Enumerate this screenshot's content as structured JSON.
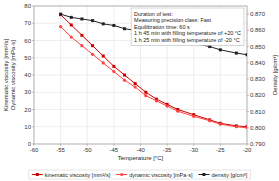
{
  "chart_data": {
    "type": "line",
    "xlabel": "Temperature [°C]",
    "ylabel": "Kinematic viscosity [mm²/s]\nDynamic viscosity [mPa·s]",
    "y2label": "Density [g/cm³]",
    "x": [
      -55,
      -53,
      -51,
      -49,
      -47,
      -45,
      -43,
      -41,
      -39,
      -37,
      -35,
      -33,
      -30,
      -27,
      -25,
      -22,
      -20
    ],
    "series": [
      {
        "name": "kinematic viscosity [mm²/s]",
        "color": "#cc0000",
        "marker": "square",
        "values": [
          75,
          69,
          63,
          57,
          51,
          45,
          40,
          35,
          30,
          26,
          23,
          20,
          17,
          14,
          12,
          10.5,
          10
        ]
      },
      {
        "name": "dynamic viscosity [mPa·s]",
        "color": "#ff4444",
        "marker": "circle",
        "values": [
          68,
          62,
          57,
          52,
          47,
          42,
          37,
          33,
          28,
          25,
          22,
          19,
          16,
          13.5,
          11.5,
          10,
          9.5
        ]
      },
      {
        "name": "density [g/cm³]",
        "color": "#222222",
        "marker": "square",
        "axis": "y2",
        "values": [
          0.87,
          0.868,
          0.867,
          0.866,
          0.864,
          0.863,
          0.861,
          0.86,
          0.858,
          0.857,
          0.855,
          0.854,
          0.852,
          0.85,
          0.848,
          0.846,
          0.845
        ]
      }
    ],
    "xlim": [
      -60,
      -20
    ],
    "xticks": [
      -60,
      -55,
      -50,
      -45,
      -40,
      -35,
      -30,
      -25,
      -20
    ],
    "ylim": [
      0,
      80
    ],
    "yticks": [
      0,
      10,
      20,
      30,
      40,
      50,
      60,
      70,
      80
    ],
    "y2lim": [
      0.79,
      0.875
    ],
    "y2ticks": [
      {
        "value": 0.79,
        "label": "0.790"
      },
      {
        "value": 0.8,
        "label": "0.800"
      },
      {
        "value": 0.81,
        "label": "0.810"
      },
      {
        "value": 0.82,
        "label": "0.820"
      },
      {
        "value": 0.83,
        "label": "0.830"
      },
      {
        "value": 0.84,
        "label": "0.840"
      },
      {
        "value": 0.85,
        "label": "0.850"
      },
      {
        "value": 0.86,
        "label": "0.860"
      },
      {
        "value": 0.87,
        "label": "0.870"
      }
    ],
    "annotations": [
      "Duration of test:",
      "Measuring precision class: Fast",
      "Equilibration time:  60 s",
      "1 h 45 min  with filling temperature of +20 °C",
      "1 h 25 min  with filling temperature of -20 °C"
    ],
    "grid": true,
    "legend": "bottom"
  }
}
